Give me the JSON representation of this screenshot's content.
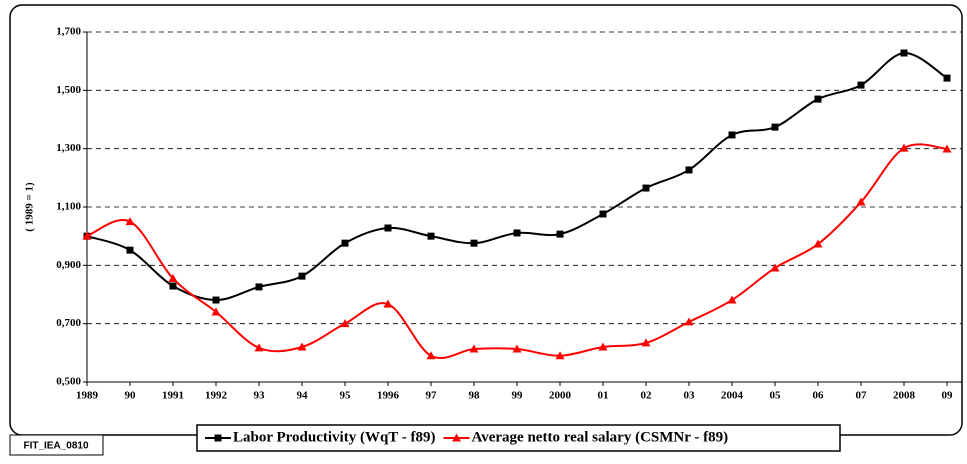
{
  "chart_data": {
    "type": "line",
    "y_label": "( 1989 = 1)",
    "annotation": "FIT_IEA_0810",
    "categories": [
      "1989",
      "90",
      "1991",
      "1992",
      "93",
      "94",
      "95",
      "1996",
      "97",
      "98",
      "99",
      "2000",
      "01",
      "02",
      "03",
      "2004",
      "05",
      "06",
      "07",
      "2008",
      "09"
    ],
    "series": [
      {
        "name": "Labor Productivity (WqT - f89)",
        "color": "#000000",
        "marker": "square",
        "values": [
          1.0,
          0.952,
          0.829,
          0.781,
          0.826,
          0.863,
          0.976,
          1.028,
          1.0,
          0.976,
          1.011,
          1.007,
          1.076,
          1.165,
          1.227,
          1.347,
          1.374,
          1.47,
          1.518,
          1.628,
          1.542
        ]
      },
      {
        "name": "Average netto real salary (CSMNr - f89)",
        "color": "#ff0000",
        "marker": "triangle",
        "values": [
          1.0,
          1.05,
          0.855,
          0.74,
          0.617,
          0.62,
          0.7,
          0.767,
          0.59,
          0.613,
          0.613,
          0.59,
          0.62,
          0.634,
          0.706,
          0.781,
          0.891,
          0.973,
          1.117,
          1.302,
          1.299
        ]
      }
    ],
    "ylim": [
      0.5,
      1.7
    ],
    "yticks": [
      {
        "value": 0.5,
        "label": "0,500"
      },
      {
        "value": 0.7,
        "label": "0,700"
      },
      {
        "value": 0.9,
        "label": "0,900"
      },
      {
        "value": 1.1,
        "label": "1,100"
      },
      {
        "value": 1.3,
        "label": "1,300"
      },
      {
        "value": 1.5,
        "label": "1,500"
      },
      {
        "value": 1.7,
        "label": "1,700"
      }
    ],
    "grid": true,
    "smooth": true,
    "legend": "bottom"
  }
}
